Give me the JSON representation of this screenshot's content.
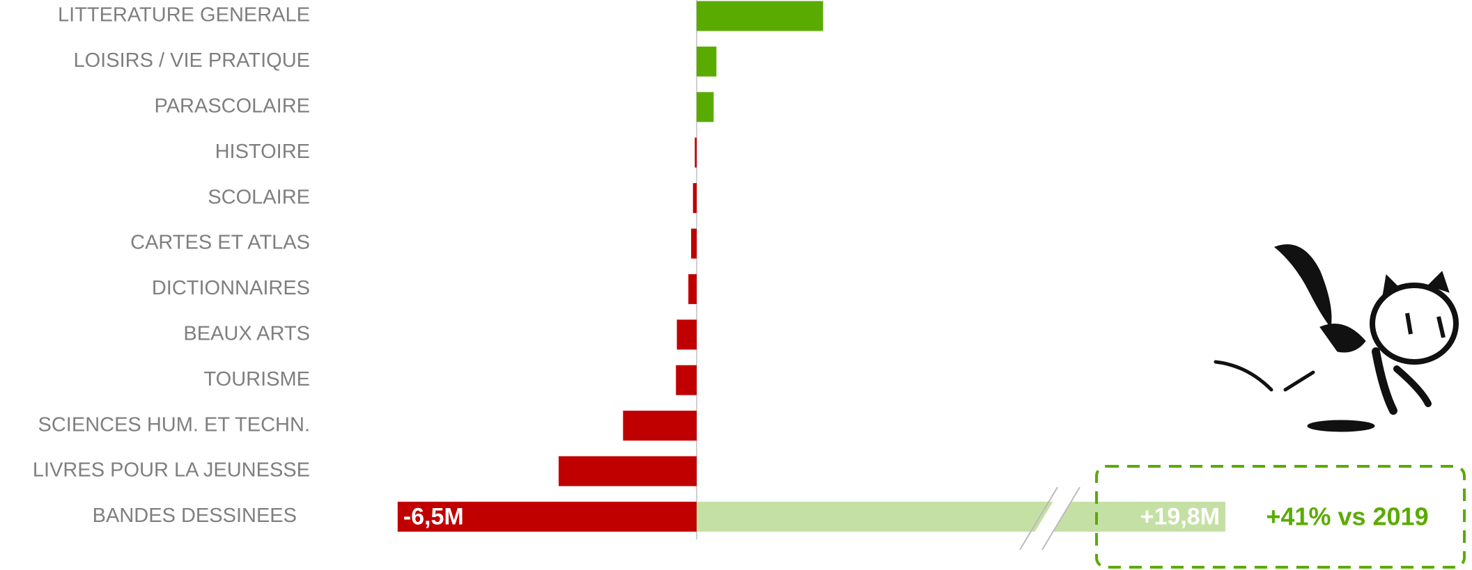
{
  "chart_data": {
    "type": "bar",
    "orientation": "horizontal",
    "categories": [
      "LITTERATURE GENERALE",
      "LOISIRS / VIE PRATIQUE",
      "PARASCOLAIRE",
      "HISTOIRE",
      "SCOLAIRE",
      "CARTES ET ATLAS",
      "DICTIONNAIRES",
      "BEAUX ARTS",
      "TOURISME",
      "SCIENCES HUM. ET TECHN.",
      "LIVRES POUR LA JEUNESSE",
      "BANDES DESSINEES"
    ],
    "values": [
      2.75,
      0.43,
      0.37,
      -0.04,
      -0.08,
      -0.12,
      -0.18,
      -0.43,
      -0.45,
      -1.6,
      -3.0,
      -6.5
    ],
    "value_labels": [
      null,
      null,
      null,
      null,
      null,
      null,
      null,
      null,
      null,
      null,
      null,
      "-6,5M"
    ],
    "positive_color": "#5aab00",
    "negative_color": "#c00000",
    "highlight": {
      "value": 19.8,
      "label": "+19,8M",
      "color": "#c5e0a5",
      "broken": true
    },
    "annotation": "+41% vs 2019"
  }
}
